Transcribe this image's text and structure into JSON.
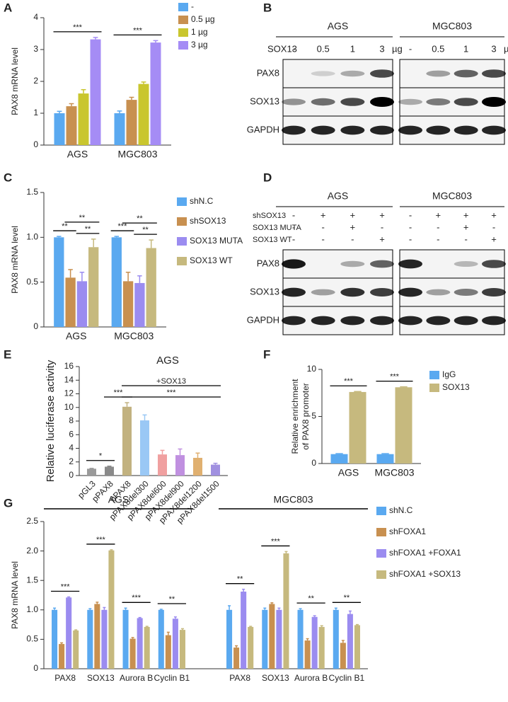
{
  "chart_data": [
    {
      "type": "bar",
      "panel": "A",
      "ylabel": "PAX8 mRNA  level",
      "categories": [
        "AGS",
        "MGC803"
      ],
      "series": [
        {
          "name": "-",
          "color": "#5aa9f0",
          "values": [
            1.0,
            1.0
          ],
          "errors": [
            0.06,
            0.07
          ]
        },
        {
          "name": "0.5 µg",
          "color": "#c89050",
          "values": [
            1.22,
            1.42
          ],
          "errors": [
            0.08,
            0.08
          ]
        },
        {
          "name": "1 µg",
          "color": "#c9c62e",
          "values": [
            1.62,
            1.92
          ],
          "errors": [
            0.12,
            0.06
          ]
        },
        {
          "name": "3 µg",
          "color": "#a58cf5",
          "values": [
            3.32,
            3.22
          ],
          "errors": [
            0.06,
            0.06
          ]
        }
      ],
      "ylim": [
        0,
        4
      ],
      "yticks": [
        0,
        1,
        2,
        3,
        4
      ],
      "annotations": [
        {
          "text": "***",
          "group": 0,
          "from": 0,
          "to": 3
        },
        {
          "text": "***",
          "group": 1,
          "from": 0,
          "to": 3
        }
      ]
    },
    {
      "type": "blot",
      "panel": "B",
      "groups": [
        "AGS",
        "MGC803"
      ],
      "conditions": [
        {
          "name": "SOX13",
          "lanes": [
            "-",
            "0.5",
            "1",
            "3",
            "-",
            "0.5",
            "1",
            "3"
          ]
        }
      ],
      "unit": "µg",
      "proteins": [
        "PAX8",
        "SOX13",
        "GAPDH"
      ]
    },
    {
      "type": "bar",
      "panel": "C",
      "ylabel": "PAX8 mRNA  level",
      "categories": [
        "AGS",
        "MGC803"
      ],
      "series": [
        {
          "name": "shN.C",
          "color": "#5aa9f0",
          "values": [
            1.0,
            1.0
          ],
          "errors": [
            0.01,
            0.01
          ]
        },
        {
          "name": "shSOX13",
          "color": "#c89050",
          "values": [
            0.55,
            0.51
          ],
          "errors": [
            0.09,
            0.1
          ]
        },
        {
          "name": "SOX13  MUTA",
          "color": "#9b8cf0",
          "values": [
            0.51,
            0.49
          ],
          "errors": [
            0.1,
            0.08
          ]
        },
        {
          "name": "SOX13  WT",
          "color": "#c6b97e",
          "values": [
            0.89,
            0.88
          ],
          "errors": [
            0.09,
            0.09
          ]
        }
      ],
      "ylim": [
        0,
        1.5
      ],
      "yticks": [
        0,
        0.5,
        {
          "value": 1,
          "label": "1.0"
        },
        1.5
      ],
      "annotations": [
        {
          "text": "**",
          "group": 0,
          "from": 0,
          "to": 1
        },
        {
          "text": "**",
          "group": 0,
          "from": 2,
          "to": 3
        },
        {
          "text": "**",
          "group": 0,
          "from": 1,
          "to": 3
        },
        {
          "text": "***",
          "group": 1,
          "from": 0,
          "to": 1
        },
        {
          "text": "**",
          "group": 1,
          "from": 2,
          "to": 3
        },
        {
          "text": "**",
          "group": 1,
          "from": 1,
          "to": 3
        }
      ]
    },
    {
      "type": "blot",
      "panel": "D",
      "groups": [
        "AGS",
        "MGC803"
      ],
      "conditions": [
        {
          "name": "shSOX13",
          "lanes": [
            "-",
            "+",
            "+",
            "+",
            "-",
            "+",
            "+",
            "+"
          ]
        },
        {
          "name": "SOX13 MUTA",
          "lanes": [
            "-",
            "-",
            "+",
            "-",
            "-",
            "-",
            "+",
            "-"
          ]
        },
        {
          "name": "SOX13 WT",
          "lanes": [
            "-",
            "-",
            "-",
            "+",
            "-",
            "-",
            "-",
            "+"
          ]
        }
      ],
      "proteins": [
        "PAX8",
        "SOX13",
        "GAPDH"
      ]
    },
    {
      "type": "bar",
      "panel": "E",
      "title": "AGS",
      "ylabel": "Relative luciferase activity",
      "categories": [
        "pGL3",
        "pPAX8",
        "pPAX8",
        "pPAX8del300",
        "pPAX8del600",
        "pPAX8del900",
        "pPAX8del1200",
        "pPAX8del1500"
      ],
      "values": [
        1.0,
        1.3,
        10.1,
        8.1,
        3.1,
        3.0,
        2.6,
        1.6
      ],
      "errors": [
        0.05,
        0.08,
        0.6,
        0.8,
        0.6,
        0.9,
        0.7,
        0.2
      ],
      "colors": [
        "#9a9a9a",
        "#8a8a8a",
        "#c2b280",
        "#9ac8f5",
        "#f0a0a0",
        "#c090e0",
        "#e0b070",
        "#a090e0"
      ],
      "ylim": [
        0,
        16
      ],
      "yticks": [
        0,
        2,
        4,
        6,
        8,
        10,
        12,
        14,
        16
      ],
      "annotations": [
        {
          "text": "*",
          "from": 0,
          "to": 1
        },
        {
          "text": "***",
          "from": 1,
          "to": 2
        },
        {
          "text": "***",
          "from": 2,
          "to": 7
        },
        {
          "text": "+SOX13",
          "from": 2,
          "to": 7
        }
      ]
    },
    {
      "type": "bar",
      "panel": "F",
      "ylabel": [
        "Relative enrichment",
        "of PAX8 promoter"
      ],
      "categories": [
        "AGS",
        "MGC803"
      ],
      "series": [
        {
          "name": "IgG",
          "color": "#5aa9f0",
          "values": [
            1.0,
            1.0
          ],
          "errors": [
            0.05,
            0.05
          ]
        },
        {
          "name": "SOX13",
          "color": "#c6b97e",
          "values": [
            7.6,
            8.1
          ],
          "errors": [
            0.05,
            0.05
          ]
        }
      ],
      "ylim": [
        0,
        10
      ],
      "yticks": [
        0,
        5,
        10
      ],
      "annotations": [
        {
          "text": "***",
          "group": 0,
          "from": 0,
          "to": 1
        },
        {
          "text": "***",
          "group": 1,
          "from": 0,
          "to": 1
        }
      ]
    },
    {
      "type": "bar",
      "panel": "G",
      "ylabel": "PAX8 mRNA  level",
      "groups": [
        "AGS",
        "MGC803"
      ],
      "categories": [
        "PAX8",
        "SOX13",
        "Aurora B",
        "Cyclin B1",
        "PAX8",
        "SOX13",
        "Aurora B",
        "Cyclin B1"
      ],
      "series": [
        {
          "name": "shN.C",
          "color": "#5aa9f0",
          "values": [
            1.0,
            1.0,
            1.0,
            1.0,
            1.0,
            1.0,
            1.0,
            1.0
          ],
          "errors": [
            0.03,
            0.02,
            0.03,
            0.01,
            0.07,
            0.03,
            0.02,
            0.03
          ]
        },
        {
          "name": "shFOXA1",
          "color": "#c89050",
          "values": [
            0.42,
            1.1,
            0.51,
            0.57,
            0.36,
            1.1,
            0.48,
            0.44
          ],
          "errors": [
            0.02,
            0.03,
            0.02,
            0.05,
            0.03,
            0.02,
            0.03,
            0.04
          ]
        },
        {
          "name": "shFOXA1 +FOXA1",
          "color": "#9b8cf0",
          "values": [
            1.21,
            1.0,
            0.86,
            0.85,
            1.31,
            1.0,
            0.88,
            0.93
          ],
          "errors": [
            0.01,
            0.04,
            0.01,
            0.03,
            0.04,
            0.03,
            0.02,
            0.05
          ]
        },
        {
          "name": "shFOXA1 +SOX13",
          "color": "#c6b97e",
          "values": [
            0.65,
            2.01,
            0.71,
            0.66,
            0.71,
            1.96,
            0.71,
            0.74
          ],
          "errors": [
            0.01,
            0.01,
            0.01,
            0.02,
            0.01,
            0.03,
            0.02,
            0.01
          ]
        }
      ],
      "ylim": [
        0,
        2.5
      ],
      "yticks": [
        0,
        0.5,
        {
          "value": 1,
          "label": "1.0"
        },
        1.5,
        {
          "value": 2,
          "label": "2.0"
        },
        2.5
      ],
      "annotations": [
        {
          "text": "***",
          "group": 0,
          "from": 0,
          "to": 3
        },
        {
          "text": "***",
          "group": 1,
          "from": 0,
          "to": 3
        },
        {
          "text": "***",
          "group": 2,
          "from": 0,
          "to": 3
        },
        {
          "text": "**",
          "group": 3,
          "from": 0,
          "to": 3
        },
        {
          "text": "**",
          "group": 4,
          "from": 0,
          "to": 3
        },
        {
          "text": "***",
          "group": 5,
          "from": 0,
          "to": 3
        },
        {
          "text": "**",
          "group": 6,
          "from": 0,
          "to": 3
        },
        {
          "text": "**",
          "group": 7,
          "from": 0,
          "to": 3
        }
      ]
    }
  ]
}
